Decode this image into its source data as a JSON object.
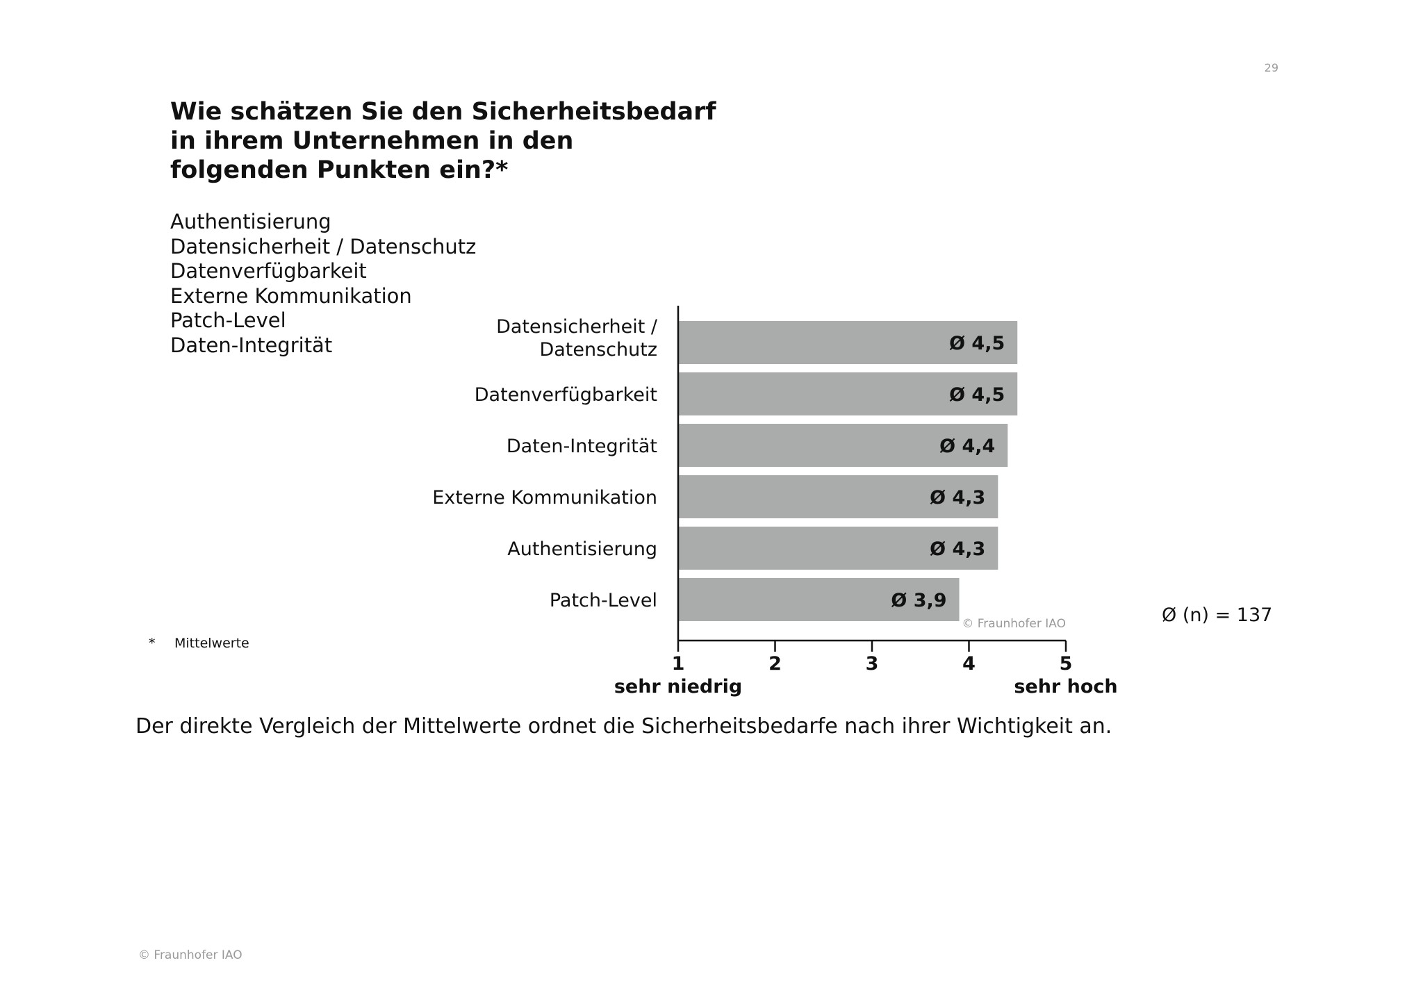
{
  "page": {
    "number": "29",
    "title_lines": [
      "Wie schätzen Sie den Sicherheitsbedarf",
      "in ihrem Unternehmen in den",
      "folgenden Punkten ein?*"
    ],
    "topics": [
      "Authentisierung",
      "Datensicherheit / Datenschutz",
      "Datenverfügbarkeit",
      "Externe Kommunikation",
      "Patch-Level",
      "Daten-Integrität"
    ],
    "footnote": {
      "marker": "*",
      "text": "Mittelwerte"
    },
    "sample_size": "Ø (n) = 137",
    "summary": "Der direkte Vergleich der Mittelwerte ordnet die Sicherheitsbedarfe nach ihrer Wichtigkeit an.",
    "footer_copyright": "© Fraunhofer IAO",
    "chart_watermark": "© Fraunhofer IAO"
  },
  "colors": {
    "bar": "#a9acaa",
    "axis": "#111111",
    "text": "#111111",
    "muted": "#9a9a9a"
  },
  "chart_data": {
    "type": "bar",
    "orientation": "horizontal",
    "categories": [
      [
        "Datensicherheit /",
        "Datenschutz"
      ],
      [
        "Datenverfügbarkeit"
      ],
      [
        "Daten-Integrität"
      ],
      [
        "Externe Kommunikation"
      ],
      [
        "Authentisierung"
      ],
      [
        "Patch-Level"
      ]
    ],
    "values": [
      4.5,
      4.5,
      4.4,
      4.3,
      4.3,
      3.9
    ],
    "value_labels": [
      "Ø 4,5",
      "Ø 4,5",
      "Ø 4,4",
      "Ø 4,3",
      "Ø 4,3",
      "Ø 3,9"
    ],
    "xlim": [
      1,
      5
    ],
    "xticks": [
      "1",
      "2",
      "3",
      "4",
      "5"
    ],
    "x_low_label": "sehr niedrig",
    "x_high_label": "sehr hoch",
    "title": "",
    "xlabel": "",
    "ylabel": ""
  }
}
